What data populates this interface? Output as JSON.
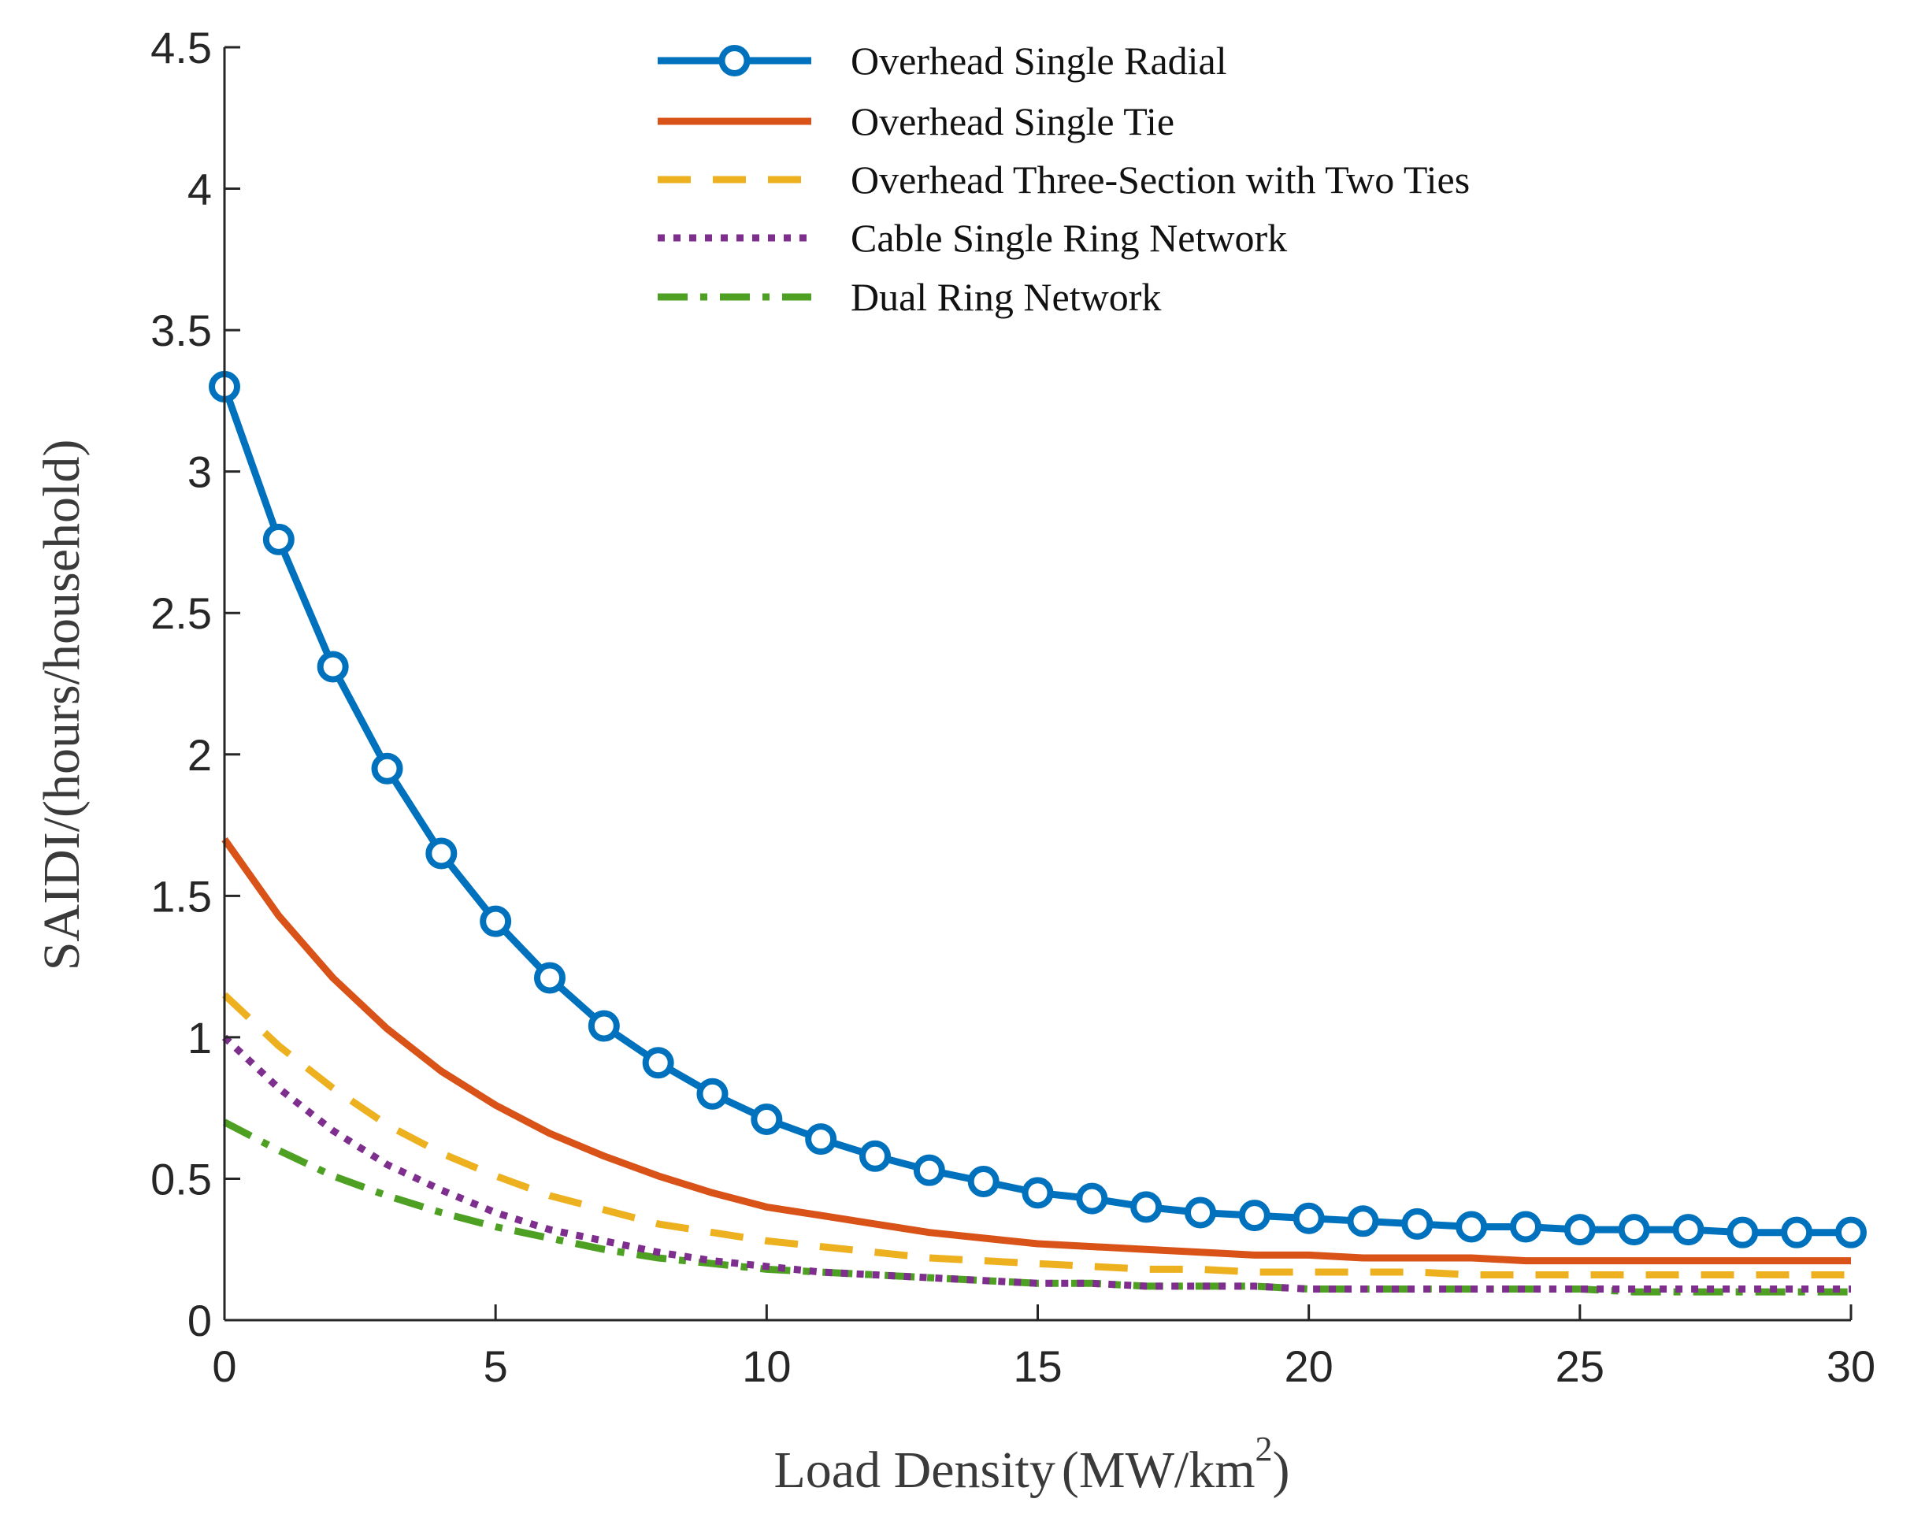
{
  "chart_data": {
    "type": "line",
    "title": "",
    "xlabel": "Load Density",
    "xlabel_unit_prefix": "(MW/km",
    "xlabel_unit_exp": "2",
    "xlabel_unit_suffix": ")",
    "ylabel": "SAIDI/(hours/household)",
    "xlim": [
      0,
      30
    ],
    "ylim": [
      0,
      4.5
    ],
    "xticks": [
      0,
      5,
      10,
      15,
      20,
      25,
      30
    ],
    "xtick_labels": [
      "0",
      "5",
      "10",
      "15",
      "20",
      "25",
      "30"
    ],
    "yticks": [
      0,
      0.5,
      1,
      1.5,
      2,
      2.5,
      3,
      3.5,
      4,
      4.5
    ],
    "ytick_labels": [
      "0",
      "0.5",
      "1",
      "1.5",
      "2",
      "2.5",
      "3",
      "3.5",
      "4",
      "4.5"
    ],
    "grid": false,
    "legend_position": "top-center",
    "x": [
      0,
      1,
      2,
      3,
      4,
      5,
      6,
      7,
      8,
      9,
      10,
      11,
      12,
      13,
      14,
      15,
      16,
      17,
      18,
      19,
      20,
      21,
      22,
      23,
      24,
      25,
      26,
      27,
      28,
      29,
      30
    ],
    "series": [
      {
        "name": "Overhead Single Radial",
        "color": "#0072BD",
        "style": "solid",
        "marker": "circle",
        "values": [
          3.3,
          2.76,
          2.31,
          1.95,
          1.65,
          1.41,
          1.21,
          1.04,
          0.91,
          0.8,
          0.71,
          0.64,
          0.58,
          0.53,
          0.49,
          0.45,
          0.43,
          0.4,
          0.38,
          0.37,
          0.36,
          0.35,
          0.34,
          0.33,
          0.33,
          0.32,
          0.32,
          0.32,
          0.31,
          0.31,
          0.31
        ]
      },
      {
        "name": "Overhead Single Tie",
        "color": "#D95319",
        "style": "solid",
        "marker": "none",
        "values": [
          1.7,
          1.43,
          1.21,
          1.03,
          0.88,
          0.76,
          0.66,
          0.58,
          0.51,
          0.45,
          0.4,
          0.37,
          0.34,
          0.31,
          0.29,
          0.27,
          0.26,
          0.25,
          0.24,
          0.23,
          0.23,
          0.22,
          0.22,
          0.22,
          0.21,
          0.21,
          0.21,
          0.21,
          0.21,
          0.21,
          0.21
        ]
      },
      {
        "name": "Overhead Three-Section with Two Ties",
        "color": "#EDB120",
        "style": "dashed",
        "marker": "none",
        "values": [
          1.15,
          0.97,
          0.82,
          0.69,
          0.59,
          0.51,
          0.44,
          0.39,
          0.34,
          0.31,
          0.28,
          0.26,
          0.24,
          0.22,
          0.21,
          0.2,
          0.19,
          0.18,
          0.18,
          0.17,
          0.17,
          0.17,
          0.17,
          0.16,
          0.16,
          0.16,
          0.16,
          0.16,
          0.16,
          0.16,
          0.16
        ]
      },
      {
        "name": "Cable Single Ring Network",
        "color": "#7E2F8E",
        "style": "dotted",
        "marker": "none",
        "values": [
          1.0,
          0.82,
          0.67,
          0.55,
          0.46,
          0.38,
          0.32,
          0.28,
          0.24,
          0.21,
          0.19,
          0.17,
          0.16,
          0.15,
          0.14,
          0.13,
          0.13,
          0.12,
          0.12,
          0.12,
          0.11,
          0.11,
          0.11,
          0.11,
          0.11,
          0.11,
          0.11,
          0.11,
          0.11,
          0.11,
          0.11
        ]
      },
      {
        "name": "Dual Ring Network",
        "color": "#4DA022",
        "style": "dashdot",
        "marker": "none",
        "values": [
          0.7,
          0.6,
          0.51,
          0.44,
          0.38,
          0.33,
          0.29,
          0.25,
          0.22,
          0.2,
          0.18,
          0.17,
          0.16,
          0.15,
          0.14,
          0.13,
          0.13,
          0.12,
          0.12,
          0.12,
          0.11,
          0.11,
          0.11,
          0.11,
          0.11,
          0.11,
          0.1,
          0.1,
          0.1,
          0.1,
          0.1
        ]
      }
    ]
  }
}
